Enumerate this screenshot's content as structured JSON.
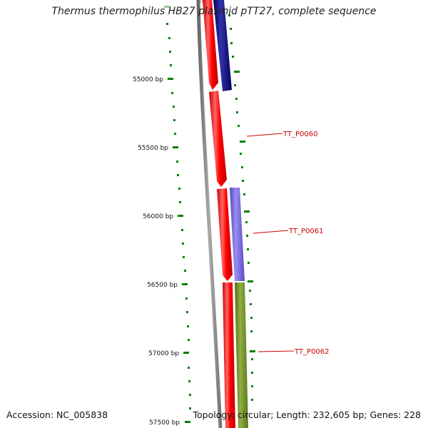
{
  "title": "Thermus thermophilus HB27 plasmid pTT27, complete sequence",
  "footer": {
    "accession": "Accession: NC_005838",
    "topology": "Topology: circular; Length: 232,605 bp; Genes: 228"
  },
  "colors": {
    "backbone": "#808080",
    "forward_gene": "#ff0000",
    "reverse_gene_dark": "#00008b",
    "reverse_gene_light": "#6a5acd",
    "reverse_gene_green": "#6b8e23",
    "tick": "#008000",
    "gene_label": "#cc0000"
  },
  "ticks": [
    {
      "label": "55000 bp"
    },
    {
      "label": "55500 bp"
    },
    {
      "label": "56000 bp"
    },
    {
      "label": "56500 bp"
    },
    {
      "label": "57000 bp"
    },
    {
      "label": "57500 bp"
    }
  ],
  "gene_labels": [
    {
      "label": "TT_P0060"
    },
    {
      "label": "TT_P0061"
    },
    {
      "label": "TT_P0062"
    }
  ]
}
